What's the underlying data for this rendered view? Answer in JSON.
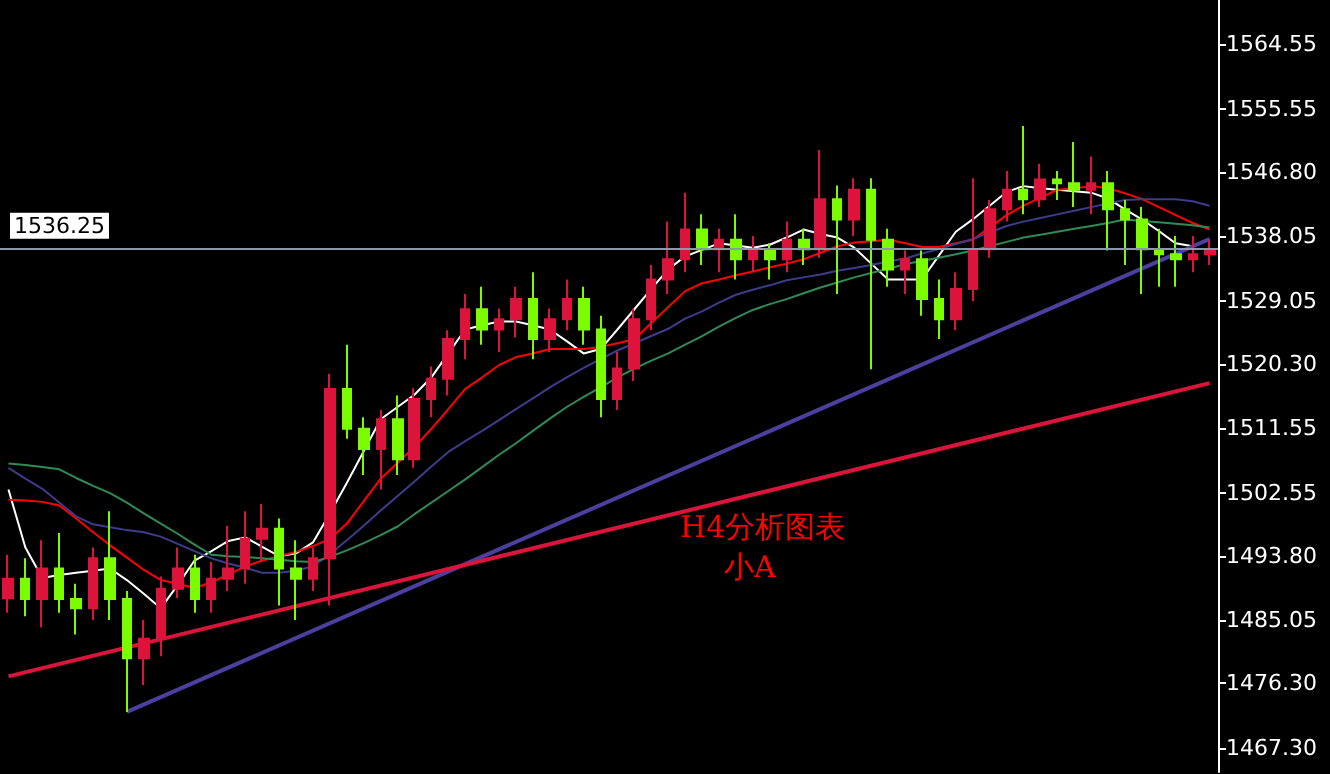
{
  "chart_data": {
    "type": "candlestick",
    "categories": [
      null,
      null,
      null,
      null,
      null,
      null,
      null,
      null,
      null,
      null,
      null,
      null,
      null,
      null,
      null,
      null,
      null,
      null,
      null,
      null,
      null,
      null,
      null,
      null,
      null,
      null,
      null,
      null,
      null,
      null,
      null,
      null,
      null,
      null,
      null,
      null,
      null,
      null,
      null,
      null,
      null,
      null,
      null,
      null,
      null,
      null,
      null,
      null,
      null,
      null,
      null,
      null,
      null,
      null,
      null,
      null,
      null,
      null,
      null,
      null,
      null,
      null,
      null,
      null,
      null,
      null,
      null,
      null,
      null,
      null,
      null,
      null
    ],
    "ohlc": [
      [
        1488.0,
        1494,
        1486,
        1490.7
      ],
      [
        1490.7,
        1493.5,
        1485.5,
        1487.9
      ],
      [
        1487.9,
        1496,
        1484,
        1492.1
      ],
      [
        1492.1,
        1497,
        1486,
        1487.9
      ],
      [
        1487.9,
        1490,
        1483,
        1486.6
      ],
      [
        1486.6,
        1495,
        1485,
        1493.5
      ],
      [
        1493.5,
        1500,
        1485,
        1487.9
      ],
      [
        1487.9,
        1489,
        1472.3,
        1479.7
      ],
      [
        1479.7,
        1485,
        1476,
        1482.4
      ],
      [
        1482.4,
        1491,
        1480,
        1489.3
      ],
      [
        1489.3,
        1495,
        1488,
        1492.1
      ],
      [
        1492.1,
        1494,
        1486,
        1487.9
      ],
      [
        1487.9,
        1493,
        1486,
        1490.7
      ],
      [
        1490.7,
        1498,
        1489,
        1492.1
      ],
      [
        1492.1,
        1500,
        1490,
        1496.2
      ],
      [
        1496.2,
        1501,
        1493,
        1497.6
      ],
      [
        1497.6,
        1499,
        1487,
        1492.1
      ],
      [
        1492.1,
        1496,
        1485,
        1490.7
      ],
      [
        1490.7,
        1495,
        1489,
        1493.5
      ],
      [
        1493.5,
        1519,
        1487,
        1516.9
      ],
      [
        1516.9,
        1523,
        1510,
        1511.4
      ],
      [
        1511.4,
        1513,
        1505,
        1508.6
      ],
      [
        1508.6,
        1514,
        1503,
        1512.7
      ],
      [
        1512.7,
        1516,
        1505,
        1507.2
      ],
      [
        1507.2,
        1517,
        1506,
        1515.5
      ],
      [
        1515.5,
        1520,
        1513,
        1518.3
      ],
      [
        1518.3,
        1525,
        1516,
        1523.8
      ],
      [
        1523.8,
        1530,
        1521,
        1527.9
      ],
      [
        1527.9,
        1531,
        1523,
        1525.1
      ],
      [
        1525.1,
        1528,
        1522,
        1526.5
      ],
      [
        1526.5,
        1531,
        1524,
        1529.3
      ],
      [
        1529.3,
        1533,
        1521,
        1523.8
      ],
      [
        1523.8,
        1528,
        1522,
        1526.5
      ],
      [
        1526.5,
        1532,
        1525,
        1529.3
      ],
      [
        1529.3,
        1531,
        1523,
        1525.1
      ],
      [
        1525.1,
        1527,
        1513,
        1515.5
      ],
      [
        1515.5,
        1522,
        1514,
        1519.7
      ],
      [
        1519.7,
        1528,
        1518,
        1526.5
      ],
      [
        1526.5,
        1534,
        1525,
        1532.0
      ],
      [
        1532.0,
        1540,
        1530,
        1534.8
      ],
      [
        1534.8,
        1544,
        1533,
        1538.9
      ],
      [
        1538.9,
        1541,
        1534,
        1536.2
      ],
      [
        1536.2,
        1539,
        1533,
        1537.5
      ],
      [
        1537.5,
        1541,
        1532,
        1534.8
      ],
      [
        1534.8,
        1538,
        1533,
        1536.2
      ],
      [
        1536.2,
        1537,
        1532,
        1534.8
      ],
      [
        1534.8,
        1540,
        1533,
        1537.5
      ],
      [
        1537.5,
        1539,
        1534,
        1536.2
      ],
      [
        1536.2,
        1549.9,
        1535,
        1543.1
      ],
      [
        1543.1,
        1545,
        1530,
        1540.3
      ],
      [
        1540.3,
        1546,
        1538,
        1544.4
      ],
      [
        1544.4,
        1546,
        1519.6,
        1537.5
      ],
      [
        1537.5,
        1539,
        1531,
        1533.4
      ],
      [
        1533.4,
        1536,
        1530,
        1534.8
      ],
      [
        1534.8,
        1536,
        1527,
        1529.3
      ],
      [
        1529.3,
        1532,
        1523.8,
        1526.5
      ],
      [
        1526.5,
        1533,
        1525,
        1530.7
      ],
      [
        1530.7,
        1546,
        1529,
        1536.2
      ],
      [
        1536.2,
        1543,
        1535,
        1541.7
      ],
      [
        1541.7,
        1547,
        1540,
        1544.4
      ],
      [
        1544.4,
        1553.2,
        1541,
        1543.1
      ],
      [
        1543.1,
        1548,
        1542,
        1545.8
      ],
      [
        1545.8,
        1547,
        1543,
        1545.3
      ],
      [
        1545.3,
        1551,
        1542,
        1544.4
      ],
      [
        1544.4,
        1549,
        1541,
        1545.3
      ],
      [
        1545.3,
        1547,
        1536,
        1541.7
      ],
      [
        1541.7,
        1543,
        1534,
        1540.3
      ],
      [
        1540.3,
        1542,
        1530,
        1536.2
      ],
      [
        1536.2,
        1539,
        1531,
        1535.5
      ],
      [
        1535.5,
        1538,
        1531,
        1534.8
      ],
      [
        1534.8,
        1538,
        1533,
        1535.5
      ],
      [
        1535.5,
        1537.5,
        1534,
        1536.2
      ]
    ],
    "colors": [
      "#dc143c",
      "#7cfc00",
      "#dc143c",
      "#7cfc00",
      "#7cfc00",
      "#dc143c",
      "#7cfc00",
      "#7cfc00",
      "#dc143c",
      "#dc143c",
      "#dc143c",
      "#7cfc00",
      "#dc143c",
      "#dc143c",
      "#dc143c",
      "#dc143c",
      "#7cfc00",
      "#7cfc00",
      "#dc143c",
      "#dc143c",
      "#7cfc00",
      "#7cfc00",
      "#dc143c",
      "#7cfc00",
      "#dc143c",
      "#dc143c",
      "#dc143c",
      "#dc143c",
      "#7cfc00",
      "#dc143c",
      "#dc143c",
      "#7cfc00",
      "#dc143c",
      "#dc143c",
      "#7cfc00",
      "#7cfc00",
      "#dc143c",
      "#dc143c",
      "#dc143c",
      "#dc143c",
      "#dc143c",
      "#7cfc00",
      "#dc143c",
      "#7cfc00",
      "#dc143c",
      "#7cfc00",
      "#dc143c",
      "#7cfc00",
      "#dc143c",
      "#7cfc00",
      "#dc143c",
      "#7cfc00",
      "#7cfc00",
      "#dc143c",
      "#7cfc00",
      "#7cfc00",
      "#dc143c",
      "#dc143c",
      "#dc143c",
      "#dc143c",
      "#7cfc00",
      "#dc143c",
      "#7cfc00",
      "#7cfc00",
      "#dc143c",
      "#7cfc00",
      "#7cfc00",
      "#7cfc00",
      "#7cfc00",
      "#7cfc00",
      "#dc143c",
      "#dc143c"
    ],
    "series": [
      {
        "type": "line",
        "color": "#ffffff",
        "values": [
          1503,
          1495,
          1490.8,
          1491.2,
          1491.5,
          1491.8,
          1492.1,
          1490.5,
          1488.6,
          1486.6,
          1489.8,
          1493.2,
          1494.5,
          1495.9,
          1496.4,
          1495.1,
          1493.8,
          1494.2,
          1495.7,
          1499.7,
          1503.9,
          1508.3,
          1512.7,
          1514.4,
          1516.1,
          1518.5,
          1521.8,
          1525.1,
          1525.7,
          1526.2,
          1526.2,
          1525.7,
          1525.1,
          1523.5,
          1521.8,
          1522.4,
          1525.1,
          1527.9,
          1530.7,
          1533.4,
          1535.2,
          1536.1,
          1537.0,
          1536.7,
          1536.4,
          1536.8,
          1537.8,
          1538.9,
          1538.3,
          1537.8,
          1536.4,
          1534.2,
          1532.0,
          1532.0,
          1532.0,
          1535.3,
          1538.6,
          1540.3,
          1542.2,
          1544.1,
          1544.9,
          1544.6,
          1544.4,
          1544.2,
          1544.0,
          1543.2,
          1541.7,
          1540.3,
          1538.7,
          1537.0,
          1536.6,
          1537.5
        ]
      },
      {
        "type": "line",
        "color": "#ff0000",
        "values": [
          1501.6,
          1501.5,
          1501.3,
          1500.8,
          1499.0,
          1497.1,
          1495.3,
          1493.6,
          1491.9,
          1490.5,
          1490.0,
          1489.4,
          1490.2,
          1491.3,
          1492.4,
          1493.2,
          1493.8,
          1494.4,
          1495.2,
          1496.2,
          1498.3,
          1501.4,
          1504.5,
          1506.7,
          1508.9,
          1511.4,
          1514.1,
          1516.9,
          1518.5,
          1520.2,
          1521.3,
          1521.8,
          1522.4,
          1522.4,
          1522.4,
          1522.7,
          1523.2,
          1523.8,
          1526.0,
          1528.2,
          1530.4,
          1531.5,
          1532.0,
          1532.6,
          1533.1,
          1533.7,
          1534.2,
          1534.8,
          1535.7,
          1536.6,
          1537.1,
          1537.3,
          1537.5,
          1537.0,
          1536.5,
          1536.5,
          1537.0,
          1537.5,
          1539.2,
          1540.9,
          1542.2,
          1543.3,
          1544.4,
          1544.6,
          1544.9,
          1544.6,
          1543.9,
          1543.1,
          1542.0,
          1540.9,
          1539.8,
          1538.9
        ]
      },
      {
        "type": "line",
        "color": "#3c3c8c",
        "values": [
          1506.0,
          1504.5,
          1503.1,
          1501.2,
          1499.3,
          1498.2,
          1497.8,
          1497.4,
          1497.1,
          1496.5,
          1495.5,
          1494.5,
          1493.5,
          1492.8,
          1492.2,
          1491.5,
          1491.5,
          1491.8,
          1492.4,
          1494.1,
          1496.0,
          1498.0,
          1500.1,
          1502.1,
          1504.1,
          1506.2,
          1508.2,
          1509.7,
          1511.1,
          1512.6,
          1514.1,
          1515.6,
          1517.1,
          1518.5,
          1519.8,
          1521.0,
          1522.2,
          1523.2,
          1524.2,
          1525.2,
          1526.6,
          1527.6,
          1528.8,
          1529.9,
          1530.6,
          1531.2,
          1531.9,
          1532.3,
          1532.7,
          1533.2,
          1533.6,
          1534.0,
          1534.5,
          1534.9,
          1535.6,
          1536.2,
          1536.9,
          1537.6,
          1538.5,
          1539.4,
          1540.0,
          1540.5,
          1541.0,
          1541.5,
          1542.0,
          1542.5,
          1543.0,
          1543.1,
          1543.1,
          1543.1,
          1542.8,
          1542.2
        ]
      },
      {
        "type": "line",
        "color": "#2e8b57",
        "values": [
          1506.6,
          1506.4,
          1506.1,
          1505.8,
          1504.6,
          1503.5,
          1502.5,
          1501.2,
          1499.7,
          1498.3,
          1496.9,
          1495.4,
          1494.0,
          1493.8,
          1493.7,
          1493.5,
          1493.3,
          1493.1,
          1493.0,
          1493.7,
          1494.6,
          1495.6,
          1496.7,
          1497.9,
          1499.6,
          1501.2,
          1502.8,
          1504.4,
          1506.1,
          1507.8,
          1509.4,
          1511.1,
          1512.8,
          1514.4,
          1515.8,
          1517.1,
          1518.5,
          1519.7,
          1520.8,
          1521.8,
          1523.0,
          1524.2,
          1525.5,
          1526.7,
          1527.8,
          1528.6,
          1529.3,
          1530.1,
          1530.9,
          1531.6,
          1532.3,
          1532.9,
          1533.5,
          1534.1,
          1534.6,
          1535.0,
          1535.5,
          1536.0,
          1536.6,
          1537.2,
          1537.8,
          1538.2,
          1538.6,
          1539.0,
          1539.4,
          1539.8,
          1540.3,
          1540.1,
          1539.9,
          1539.7,
          1539.5,
          1539.2
        ]
      },
      {
        "type": "line",
        "color": "#4b3fa0",
        "values": [
          null,
          null,
          null,
          null,
          null,
          null,
          null,
          1472.3,
          null,
          null,
          null,
          null,
          null,
          null,
          null,
          null,
          null,
          null,
          null,
          null,
          null,
          null,
          null,
          null,
          null,
          null,
          null,
          null,
          null,
          null,
          null,
          null,
          null,
          null,
          null,
          null,
          null,
          null,
          null,
          null,
          null,
          null,
          null,
          null,
          null,
          null,
          null,
          null,
          null,
          null,
          null,
          null,
          null,
          null,
          null,
          null,
          null,
          null,
          null,
          null,
          null,
          null,
          null,
          null,
          null,
          null,
          null,
          null,
          null,
          null,
          null,
          1537.6
        ]
      },
      {
        "type": "line",
        "color": "#dc143c",
        "values": [
          1477.2,
          null,
          null,
          null,
          null,
          null,
          null,
          null,
          null,
          null,
          null,
          null,
          null,
          null,
          null,
          null,
          null,
          null,
          null,
          null,
          null,
          null,
          null,
          null,
          null,
          null,
          null,
          null,
          null,
          null,
          null,
          null,
          null,
          null,
          null,
          null,
          null,
          null,
          null,
          null,
          null,
          null,
          null,
          null,
          null,
          null,
          null,
          null,
          null,
          null,
          null,
          null,
          null,
          null,
          null,
          null,
          null,
          null,
          null,
          null,
          null,
          null,
          null,
          null,
          null,
          null,
          null,
          null,
          null,
          null,
          null,
          1517.7
        ]
      }
    ],
    "ylim": [
      1464.0,
      1570.6
    ],
    "yticks": [
      {
        "value": 1467.3,
        "label": "1467.30"
      },
      {
        "value": 1476.3,
        "label": "1476.30"
      },
      1485.05,
      {
        "value": 1493.8,
        "label": "1493.80"
      },
      1502.55,
      1511.55,
      {
        "value": 1520.3,
        "label": "1520.30"
      },
      1529.05,
      1538.05,
      {
        "value": 1546.8,
        "label": "1546.80"
      },
      1555.55,
      1564.55
    ],
    "ref_lines": [
      {
        "axis": "y",
        "value": 1536.25,
        "label": "1536.25",
        "color": "#8899aa"
      }
    ],
    "annotations": [
      "H4分析图表",
      "小A"
    ],
    "tick_labels": "y",
    "grid": false
  }
}
